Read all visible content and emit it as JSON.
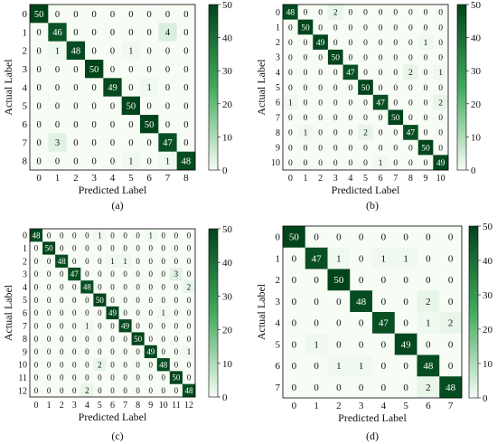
{
  "chart_data": [
    {
      "panel": "(a)",
      "type": "heatmap",
      "xlabel": "Predicted Label",
      "ylabel": "Actual Label",
      "x_ticks": [
        "0",
        "1",
        "2",
        "3",
        "4",
        "5",
        "6",
        "7",
        "8"
      ],
      "y_ticks": [
        "0",
        "1",
        "2",
        "3",
        "4",
        "5",
        "6",
        "7",
        "8"
      ],
      "colorbar": {
        "ticks": [
          0,
          10,
          20,
          30,
          40,
          50
        ],
        "range": [
          0,
          50
        ]
      },
      "matrix": [
        [
          50,
          0,
          0,
          0,
          0,
          0,
          0,
          0,
          0
        ],
        [
          0,
          46,
          0,
          0,
          0,
          0,
          0,
          4,
          0
        ],
        [
          0,
          1,
          48,
          0,
          0,
          1,
          0,
          0,
          0
        ],
        [
          0,
          0,
          0,
          50,
          0,
          0,
          0,
          0,
          0
        ],
        [
          0,
          0,
          0,
          0,
          49,
          0,
          1,
          0,
          0
        ],
        [
          0,
          0,
          0,
          0,
          0,
          50,
          0,
          0,
          0
        ],
        [
          0,
          0,
          0,
          0,
          0,
          0,
          50,
          0,
          0
        ],
        [
          0,
          3,
          0,
          0,
          0,
          0,
          0,
          47,
          0
        ],
        [
          0,
          0,
          0,
          0,
          0,
          1,
          0,
          1,
          48
        ]
      ]
    },
    {
      "panel": "(b)",
      "type": "heatmap",
      "xlabel": "Predicted Label",
      "ylabel": "Actual Label",
      "x_ticks": [
        "0",
        "1",
        "2",
        "3",
        "4",
        "5",
        "6",
        "7",
        "8",
        "9",
        "10"
      ],
      "y_ticks": [
        "0",
        "1",
        "2",
        "3",
        "4",
        "5",
        "6",
        "7",
        "8",
        "9",
        "10"
      ],
      "colorbar": {
        "ticks": [
          0,
          10,
          20,
          30,
          40,
          50
        ],
        "range": [
          0,
          50
        ]
      },
      "matrix": [
        [
          48,
          0,
          0,
          2,
          0,
          0,
          0,
          0,
          0,
          0,
          0
        ],
        [
          0,
          50,
          0,
          0,
          0,
          0,
          0,
          0,
          0,
          0,
          0
        ],
        [
          0,
          0,
          49,
          0,
          0,
          0,
          0,
          0,
          0,
          1,
          0
        ],
        [
          0,
          0,
          0,
          50,
          0,
          0,
          0,
          0,
          0,
          0,
          0
        ],
        [
          0,
          0,
          0,
          0,
          47,
          0,
          0,
          0,
          2,
          0,
          1
        ],
        [
          0,
          0,
          0,
          0,
          0,
          50,
          0,
          0,
          0,
          0,
          0
        ],
        [
          1,
          0,
          0,
          0,
          0,
          0,
          47,
          0,
          0,
          0,
          2
        ],
        [
          0,
          0,
          0,
          0,
          0,
          0,
          0,
          50,
          0,
          0,
          0
        ],
        [
          0,
          1,
          0,
          0,
          0,
          2,
          0,
          0,
          47,
          0,
          0
        ],
        [
          0,
          0,
          0,
          0,
          0,
          0,
          0,
          0,
          0,
          50,
          0
        ],
        [
          0,
          0,
          0,
          0,
          0,
          0,
          1,
          0,
          0,
          0,
          49
        ]
      ]
    },
    {
      "panel": "(c)",
      "type": "heatmap",
      "xlabel": "Predicted Label",
      "ylabel": "Actual Label",
      "x_ticks": [
        "0",
        "1",
        "2",
        "3",
        "4",
        "5",
        "6",
        "7",
        "8",
        "9",
        "10",
        "11",
        "12"
      ],
      "y_ticks": [
        "0",
        "1",
        "2",
        "3",
        "4",
        "5",
        "6",
        "7",
        "8",
        "9",
        "10",
        "11",
        "12"
      ],
      "colorbar": {
        "ticks": [
          0,
          10,
          20,
          30,
          40,
          50
        ],
        "range": [
          0,
          50
        ]
      },
      "matrix": [
        [
          48,
          0,
          0,
          0,
          0,
          1,
          0,
          0,
          0,
          1,
          0,
          0,
          0
        ],
        [
          0,
          50,
          0,
          0,
          0,
          0,
          0,
          0,
          0,
          0,
          0,
          0,
          0
        ],
        [
          0,
          0,
          48,
          0,
          0,
          0,
          1,
          1,
          0,
          0,
          0,
          0,
          0
        ],
        [
          0,
          0,
          0,
          47,
          0,
          0,
          0,
          0,
          0,
          0,
          0,
          3,
          0
        ],
        [
          0,
          0,
          0,
          0,
          48,
          0,
          0,
          0,
          0,
          0,
          0,
          0,
          2
        ],
        [
          0,
          0,
          0,
          0,
          0,
          50,
          0,
          0,
          0,
          0,
          0,
          0,
          0
        ],
        [
          0,
          0,
          0,
          0,
          0,
          0,
          49,
          0,
          0,
          0,
          1,
          0,
          0
        ],
        [
          0,
          0,
          0,
          0,
          1,
          0,
          0,
          49,
          0,
          0,
          0,
          0,
          0
        ],
        [
          0,
          0,
          0,
          0,
          0,
          0,
          0,
          0,
          50,
          0,
          0,
          0,
          0
        ],
        [
          0,
          0,
          0,
          0,
          0,
          0,
          0,
          0,
          0,
          49,
          0,
          0,
          1
        ],
        [
          0,
          0,
          0,
          0,
          0,
          2,
          0,
          0,
          0,
          0,
          48,
          0,
          0
        ],
        [
          0,
          0,
          0,
          0,
          0,
          0,
          0,
          0,
          0,
          0,
          0,
          50,
          0
        ],
        [
          0,
          0,
          0,
          0,
          2,
          0,
          0,
          0,
          0,
          0,
          0,
          0,
          48
        ]
      ]
    },
    {
      "panel": "(d)",
      "type": "heatmap",
      "xlabel": "Predicted Label",
      "ylabel": "Actual Label",
      "x_ticks": [
        "0",
        "1",
        "2",
        "3",
        "4",
        "5",
        "6",
        "7"
      ],
      "y_ticks": [
        "0",
        "1",
        "2",
        "3",
        "4",
        "5",
        "6",
        "7"
      ],
      "colorbar": {
        "ticks": [
          0,
          10,
          20,
          30,
          40,
          50
        ],
        "range": [
          0,
          50
        ]
      },
      "matrix": [
        [
          50,
          0,
          0,
          0,
          0,
          0,
          0,
          0
        ],
        [
          0,
          47,
          1,
          0,
          1,
          1,
          0,
          0
        ],
        [
          0,
          0,
          50,
          0,
          0,
          0,
          0,
          0
        ],
        [
          0,
          0,
          0,
          48,
          0,
          0,
          2,
          0
        ],
        [
          0,
          0,
          0,
          0,
          47,
          0,
          1,
          2
        ],
        [
          0,
          1,
          0,
          0,
          0,
          49,
          0,
          0
        ],
        [
          0,
          0,
          1,
          1,
          0,
          0,
          48,
          0
        ],
        [
          0,
          0,
          0,
          0,
          0,
          0,
          2,
          48
        ]
      ]
    }
  ],
  "colors": {
    "low": "#f7fcf5",
    "high": "#00441b"
  }
}
